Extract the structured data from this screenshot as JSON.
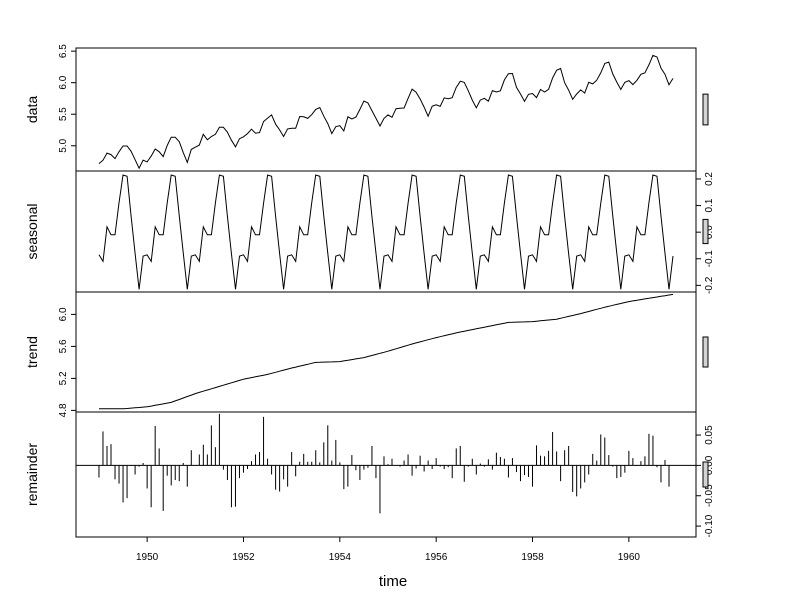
{
  "chart_data": {
    "type": "line",
    "description_kind": "stl-decomposition",
    "xlabel": "time",
    "x_range": [
      1949,
      1960.917
    ],
    "x_ticks": [
      "1950",
      "1952",
      "1954",
      "1956",
      "1958",
      "1960"
    ],
    "x_tick_values": [
      1950,
      1952,
      1954,
      1956,
      1958,
      1960
    ],
    "start_year": 1949,
    "frequency": 12,
    "panels": [
      {
        "name": "data",
        "style": "line",
        "side": "left",
        "ylim": [
          4.6,
          6.55
        ],
        "tick_labels": [
          "5.0",
          "5.5",
          "6.0",
          "6.5"
        ],
        "tick_values": [
          5.0,
          5.5,
          6.0,
          6.5
        ],
        "scale_bar": 0.25,
        "values": [
          4.718,
          4.771,
          4.883,
          4.86,
          4.796,
          4.905,
          4.997,
          4.997,
          4.913,
          4.779,
          4.644,
          4.771,
          4.745,
          4.836,
          4.949,
          4.905,
          4.828,
          5.004,
          5.136,
          5.136,
          5.063,
          4.89,
          4.736,
          4.942,
          4.977,
          5.011,
          5.182,
          5.094,
          5.147,
          5.182,
          5.293,
          5.293,
          5.215,
          5.088,
          4.984,
          5.112,
          5.142,
          5.193,
          5.263,
          5.199,
          5.209,
          5.385,
          5.438,
          5.489,
          5.342,
          5.252,
          5.147,
          5.268,
          5.278,
          5.278,
          5.464,
          5.46,
          5.434,
          5.493,
          5.576,
          5.606,
          5.468,
          5.352,
          5.193,
          5.303,
          5.318,
          5.236,
          5.46,
          5.425,
          5.455,
          5.576,
          5.71,
          5.68,
          5.557,
          5.434,
          5.313,
          5.434,
          5.489,
          5.451,
          5.587,
          5.595,
          5.598,
          5.753,
          5.897,
          5.849,
          5.743,
          5.613,
          5.468,
          5.628,
          5.649,
          5.624,
          5.759,
          5.746,
          5.762,
          5.924,
          6.023,
          6.004,
          5.872,
          5.724,
          5.602,
          5.724,
          5.753,
          5.707,
          5.875,
          5.852,
          5.872,
          6.045,
          6.142,
          6.146,
          5.925,
          5.82,
          5.704,
          5.816,
          5.829,
          5.763,
          5.892,
          5.852,
          5.895,
          6.075,
          6.196,
          6.225,
          6.001,
          5.883,
          5.737,
          5.82,
          5.886,
          5.835,
          6.006,
          5.981,
          6.04,
          6.157,
          6.306,
          6.327,
          6.138,
          6.009,
          5.892,
          6.004,
          6.033,
          5.969,
          6.038,
          6.133,
          6.157,
          6.282,
          6.433,
          6.407,
          6.23,
          6.133,
          5.966,
          6.068
        ]
      },
      {
        "name": "seasonal",
        "style": "line",
        "side": "right",
        "ylim": [
          -0.225,
          0.23
        ],
        "tick_labels": [
          "-0.2",
          "-0.1",
          "0.0",
          "0.1",
          "0.2"
        ],
        "tick_values": [
          -0.2,
          -0.1,
          0.0,
          0.1,
          0.2
        ],
        "scale_bar": 0.2,
        "pattern": [
          -0.085,
          -0.11,
          0.02,
          -0.01,
          -0.01,
          0.11,
          0.215,
          0.21,
          0.06,
          -0.08,
          -0.215,
          -0.09
        ]
      },
      {
        "name": "trend",
        "style": "line",
        "side": "left",
        "ylim": [
          4.78,
          6.28
        ],
        "tick_labels": [
          "4.8",
          "5.2",
          "5.6",
          "6.0"
        ],
        "tick_values": [
          4.8,
          5.2,
          5.6,
          6.0
        ],
        "scale_bar": 0.25,
        "anchors": [
          [
            1949,
            4.82
          ],
          [
            1949.5,
            4.82
          ],
          [
            1950,
            4.845
          ],
          [
            1950.5,
            4.9
          ],
          [
            1951,
            5.01
          ],
          [
            1951.5,
            5.1
          ],
          [
            1952,
            5.19
          ],
          [
            1952.5,
            5.25
          ],
          [
            1953,
            5.33
          ],
          [
            1953.5,
            5.4
          ],
          [
            1954,
            5.41
          ],
          [
            1954.5,
            5.46
          ],
          [
            1955,
            5.54
          ],
          [
            1955.5,
            5.63
          ],
          [
            1956,
            5.71
          ],
          [
            1956.5,
            5.78
          ],
          [
            1957,
            5.84
          ],
          [
            1957.5,
            5.9
          ],
          [
            1958,
            5.91
          ],
          [
            1958.5,
            5.94
          ],
          [
            1959,
            6.01
          ],
          [
            1959.5,
            6.09
          ],
          [
            1960,
            6.16
          ],
          [
            1960.5,
            6.21
          ],
          [
            1960.917,
            6.25
          ]
        ]
      },
      {
        "name": "remainder",
        "style": "spikes",
        "side": "right",
        "ylim": [
          -0.118,
          0.088
        ],
        "tick_labels": [
          "-0.10",
          "-0.05",
          "0.00",
          "0.05"
        ],
        "tick_values": [
          -0.1,
          -0.05,
          0.0,
          0.05
        ],
        "scale_bar": 0.2,
        "values": [
          -0.02,
          0.056,
          0.032,
          0.035,
          -0.023,
          -0.03,
          -0.061,
          -0.054,
          -0.001,
          -0.015,
          -0.002,
          0.004,
          -0.038,
          -0.069,
          0.065,
          0.028,
          -0.075,
          -0.017,
          -0.033,
          -0.024,
          -0.026,
          0.004,
          -0.035,
          0.025,
          0.0,
          0.018,
          0.034,
          0.018,
          0.066,
          0.03,
          0.085,
          -0.007,
          -0.024,
          -0.069,
          -0.068,
          -0.021,
          -0.012,
          -0.006,
          0.007,
          0.018,
          0.022,
          0.08,
          0.011,
          -0.015,
          -0.04,
          -0.043,
          -0.023,
          -0.035,
          0.022,
          -0.018,
          0.006,
          0.019,
          0.006,
          0.006,
          0.025,
          0.005,
          0.038,
          0.066,
          0.008,
          0.042,
          0.005,
          -0.039,
          -0.035,
          0.017,
          -0.008,
          -0.024,
          -0.007,
          -0.004,
          0.032,
          -0.021,
          -0.079,
          0.015,
          0.002,
          0.011,
          0.0,
          -0.002,
          0.008,
          0.018,
          -0.017,
          -0.005,
          0.016,
          -0.01,
          0.008,
          -0.006,
          0.012,
          -0.002,
          -0.006,
          -0.003,
          -0.021,
          0.028,
          0.032,
          -0.027,
          -0.002,
          0.011,
          -0.015,
          0.003,
          -0.002,
          0.01,
          -0.007,
          0.021,
          0.014,
          0.011,
          -0.02,
          0.012,
          -0.011,
          -0.026,
          -0.016,
          -0.019,
          -0.035,
          0.033,
          0.016,
          0.015,
          0.024,
          0.055,
          0.023,
          -0.026,
          0.025,
          0.032,
          -0.044,
          -0.051,
          -0.038,
          -0.028,
          -0.015,
          0.019,
          0.008,
          0.051,
          0.046,
          0.017,
          -0.002,
          -0.021,
          -0.019,
          -0.012,
          0.024,
          0.012,
          -0.001,
          0.007,
          0.015,
          0.052,
          0.049,
          -0.003,
          -0.028,
          0.009,
          -0.035
        ]
      }
    ]
  }
}
